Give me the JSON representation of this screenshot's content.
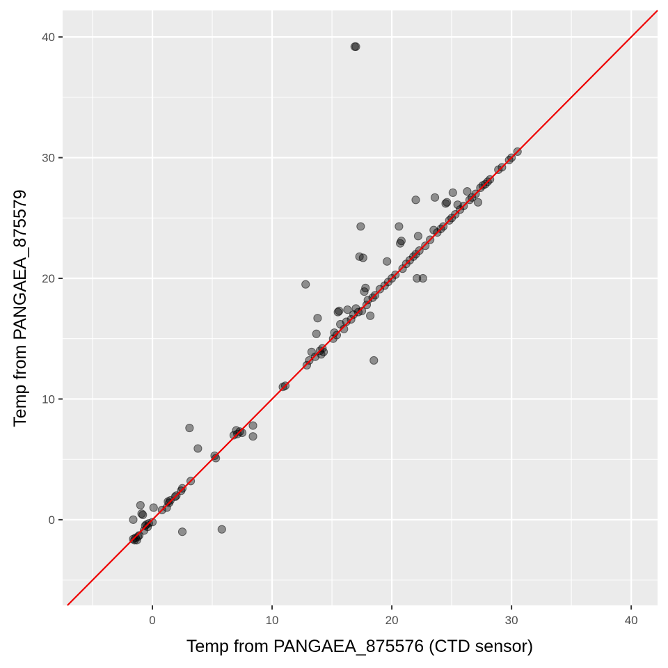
{
  "chart_data": {
    "type": "scatter",
    "xlabel": "Temp from PANGAEA_875576 (CTD sensor)",
    "ylabel": "Temp from PANGAEA_875579",
    "xlim": [
      -7.5,
      42.2
    ],
    "ylim": [
      -7.1,
      42.2
    ],
    "x_ticks": [
      0,
      10,
      20,
      30,
      40
    ],
    "y_ticks": [
      0,
      10,
      20,
      30,
      40
    ],
    "grid": true,
    "panel_background": "#ebebeb",
    "grid_color": "#ffffff",
    "point_color": "#000000",
    "point_alpha": 0.4,
    "reference_line": {
      "slope": 1,
      "intercept": 0,
      "color": "#ee0000"
    },
    "series": [
      {
        "points": [
          [
            -1.6,
            -1.6
          ],
          [
            -1.5,
            -1.7
          ],
          [
            -1.4,
            -1.5
          ],
          [
            -1.3,
            -1.7
          ],
          [
            -1.2,
            -1.4
          ],
          [
            -1.1,
            -1.3
          ],
          [
            -1.6,
            0.0
          ],
          [
            -1.0,
            1.2
          ],
          [
            -0.8,
            0.4
          ],
          [
            -0.9,
            0.5
          ],
          [
            -0.7,
            -0.9
          ],
          [
            -0.6,
            -0.5
          ],
          [
            -0.5,
            -0.4
          ],
          [
            -0.4,
            -0.6
          ],
          [
            -0.3,
            -0.3
          ],
          [
            0.0,
            -0.2
          ],
          [
            0.1,
            1.0
          ],
          [
            0.8,
            0.8
          ],
          [
            1.2,
            1.0
          ],
          [
            1.3,
            1.5
          ],
          [
            1.4,
            1.4
          ],
          [
            1.5,
            1.6
          ],
          [
            1.9,
            1.9
          ],
          [
            2.0,
            2.0
          ],
          [
            2.4,
            2.4
          ],
          [
            2.5,
            2.6
          ],
          [
            2.5,
            -1.0
          ],
          [
            3.1,
            7.6
          ],
          [
            3.2,
            3.2
          ],
          [
            3.8,
            5.9
          ],
          [
            5.2,
            5.3
          ],
          [
            5.3,
            5.1
          ],
          [
            5.8,
            -0.8
          ],
          [
            6.8,
            7.0
          ],
          [
            7.0,
            7.4
          ],
          [
            7.1,
            7.1
          ],
          [
            7.3,
            7.3
          ],
          [
            7.5,
            7.2
          ],
          [
            8.4,
            6.9
          ],
          [
            8.4,
            7.8
          ],
          [
            10.9,
            11.0
          ],
          [
            11.1,
            11.1
          ],
          [
            12.8,
            19.5
          ],
          [
            12.9,
            12.8
          ],
          [
            13.1,
            13.2
          ],
          [
            13.3,
            13.9
          ],
          [
            13.6,
            13.5
          ],
          [
            13.7,
            15.4
          ],
          [
            13.8,
            16.7
          ],
          [
            14.0,
            14.0
          ],
          [
            14.1,
            13.7
          ],
          [
            14.2,
            14.2
          ],
          [
            14.3,
            13.9
          ],
          [
            15.1,
            15.0
          ],
          [
            15.2,
            15.5
          ],
          [
            15.4,
            15.3
          ],
          [
            15.5,
            17.2
          ],
          [
            15.6,
            17.3
          ],
          [
            15.7,
            16.2
          ],
          [
            16.0,
            15.8
          ],
          [
            16.2,
            16.4
          ],
          [
            16.3,
            17.4
          ],
          [
            16.6,
            16.6
          ],
          [
            16.8,
            17.0
          ],
          [
            16.9,
            39.2
          ],
          [
            17.0,
            39.2
          ],
          [
            17.0,
            17.5
          ],
          [
            17.2,
            17.2
          ],
          [
            17.3,
            21.8
          ],
          [
            17.4,
            24.3
          ],
          [
            17.5,
            17.3
          ],
          [
            17.6,
            21.7
          ],
          [
            17.7,
            18.9
          ],
          [
            17.8,
            19.2
          ],
          [
            17.9,
            17.8
          ],
          [
            18.0,
            18.2
          ],
          [
            18.2,
            16.9
          ],
          [
            18.4,
            18.4
          ],
          [
            18.5,
            13.2
          ],
          [
            18.6,
            18.6
          ],
          [
            19.0,
            19.1
          ],
          [
            19.4,
            19.4
          ],
          [
            19.6,
            21.4
          ],
          [
            19.7,
            19.7
          ],
          [
            20.0,
            20.0
          ],
          [
            20.3,
            20.3
          ],
          [
            20.6,
            24.3
          ],
          [
            20.7,
            22.9
          ],
          [
            20.8,
            23.1
          ],
          [
            20.9,
            20.8
          ],
          [
            21.2,
            21.2
          ],
          [
            21.5,
            21.5
          ],
          [
            21.8,
            21.8
          ],
          [
            22.0,
            26.5
          ],
          [
            22.0,
            22.0
          ],
          [
            22.1,
            20.0
          ],
          [
            22.2,
            23.5
          ],
          [
            22.3,
            22.3
          ],
          [
            22.6,
            20.0
          ],
          [
            22.8,
            22.7
          ],
          [
            23.2,
            23.2
          ],
          [
            23.5,
            24.0
          ],
          [
            23.6,
            26.7
          ],
          [
            23.8,
            23.8
          ],
          [
            24.1,
            24.1
          ],
          [
            24.3,
            24.3
          ],
          [
            24.5,
            26.2
          ],
          [
            24.6,
            26.3
          ],
          [
            24.8,
            24.8
          ],
          [
            25.0,
            25.0
          ],
          [
            25.1,
            27.1
          ],
          [
            25.3,
            25.3
          ],
          [
            25.5,
            26.1
          ],
          [
            25.7,
            25.7
          ],
          [
            26.0,
            26.0
          ],
          [
            26.3,
            27.2
          ],
          [
            26.5,
            26.5
          ],
          [
            26.7,
            26.7
          ],
          [
            27.0,
            27.0
          ],
          [
            27.2,
            26.3
          ],
          [
            27.4,
            27.5
          ],
          [
            27.6,
            27.7
          ],
          [
            27.8,
            27.8
          ],
          [
            28.0,
            28.0
          ],
          [
            28.2,
            28.2
          ],
          [
            28.9,
            29.0
          ],
          [
            29.2,
            29.2
          ],
          [
            29.8,
            29.8
          ],
          [
            30.0,
            30.0
          ],
          [
            30.5,
            30.5
          ]
        ]
      }
    ]
  }
}
